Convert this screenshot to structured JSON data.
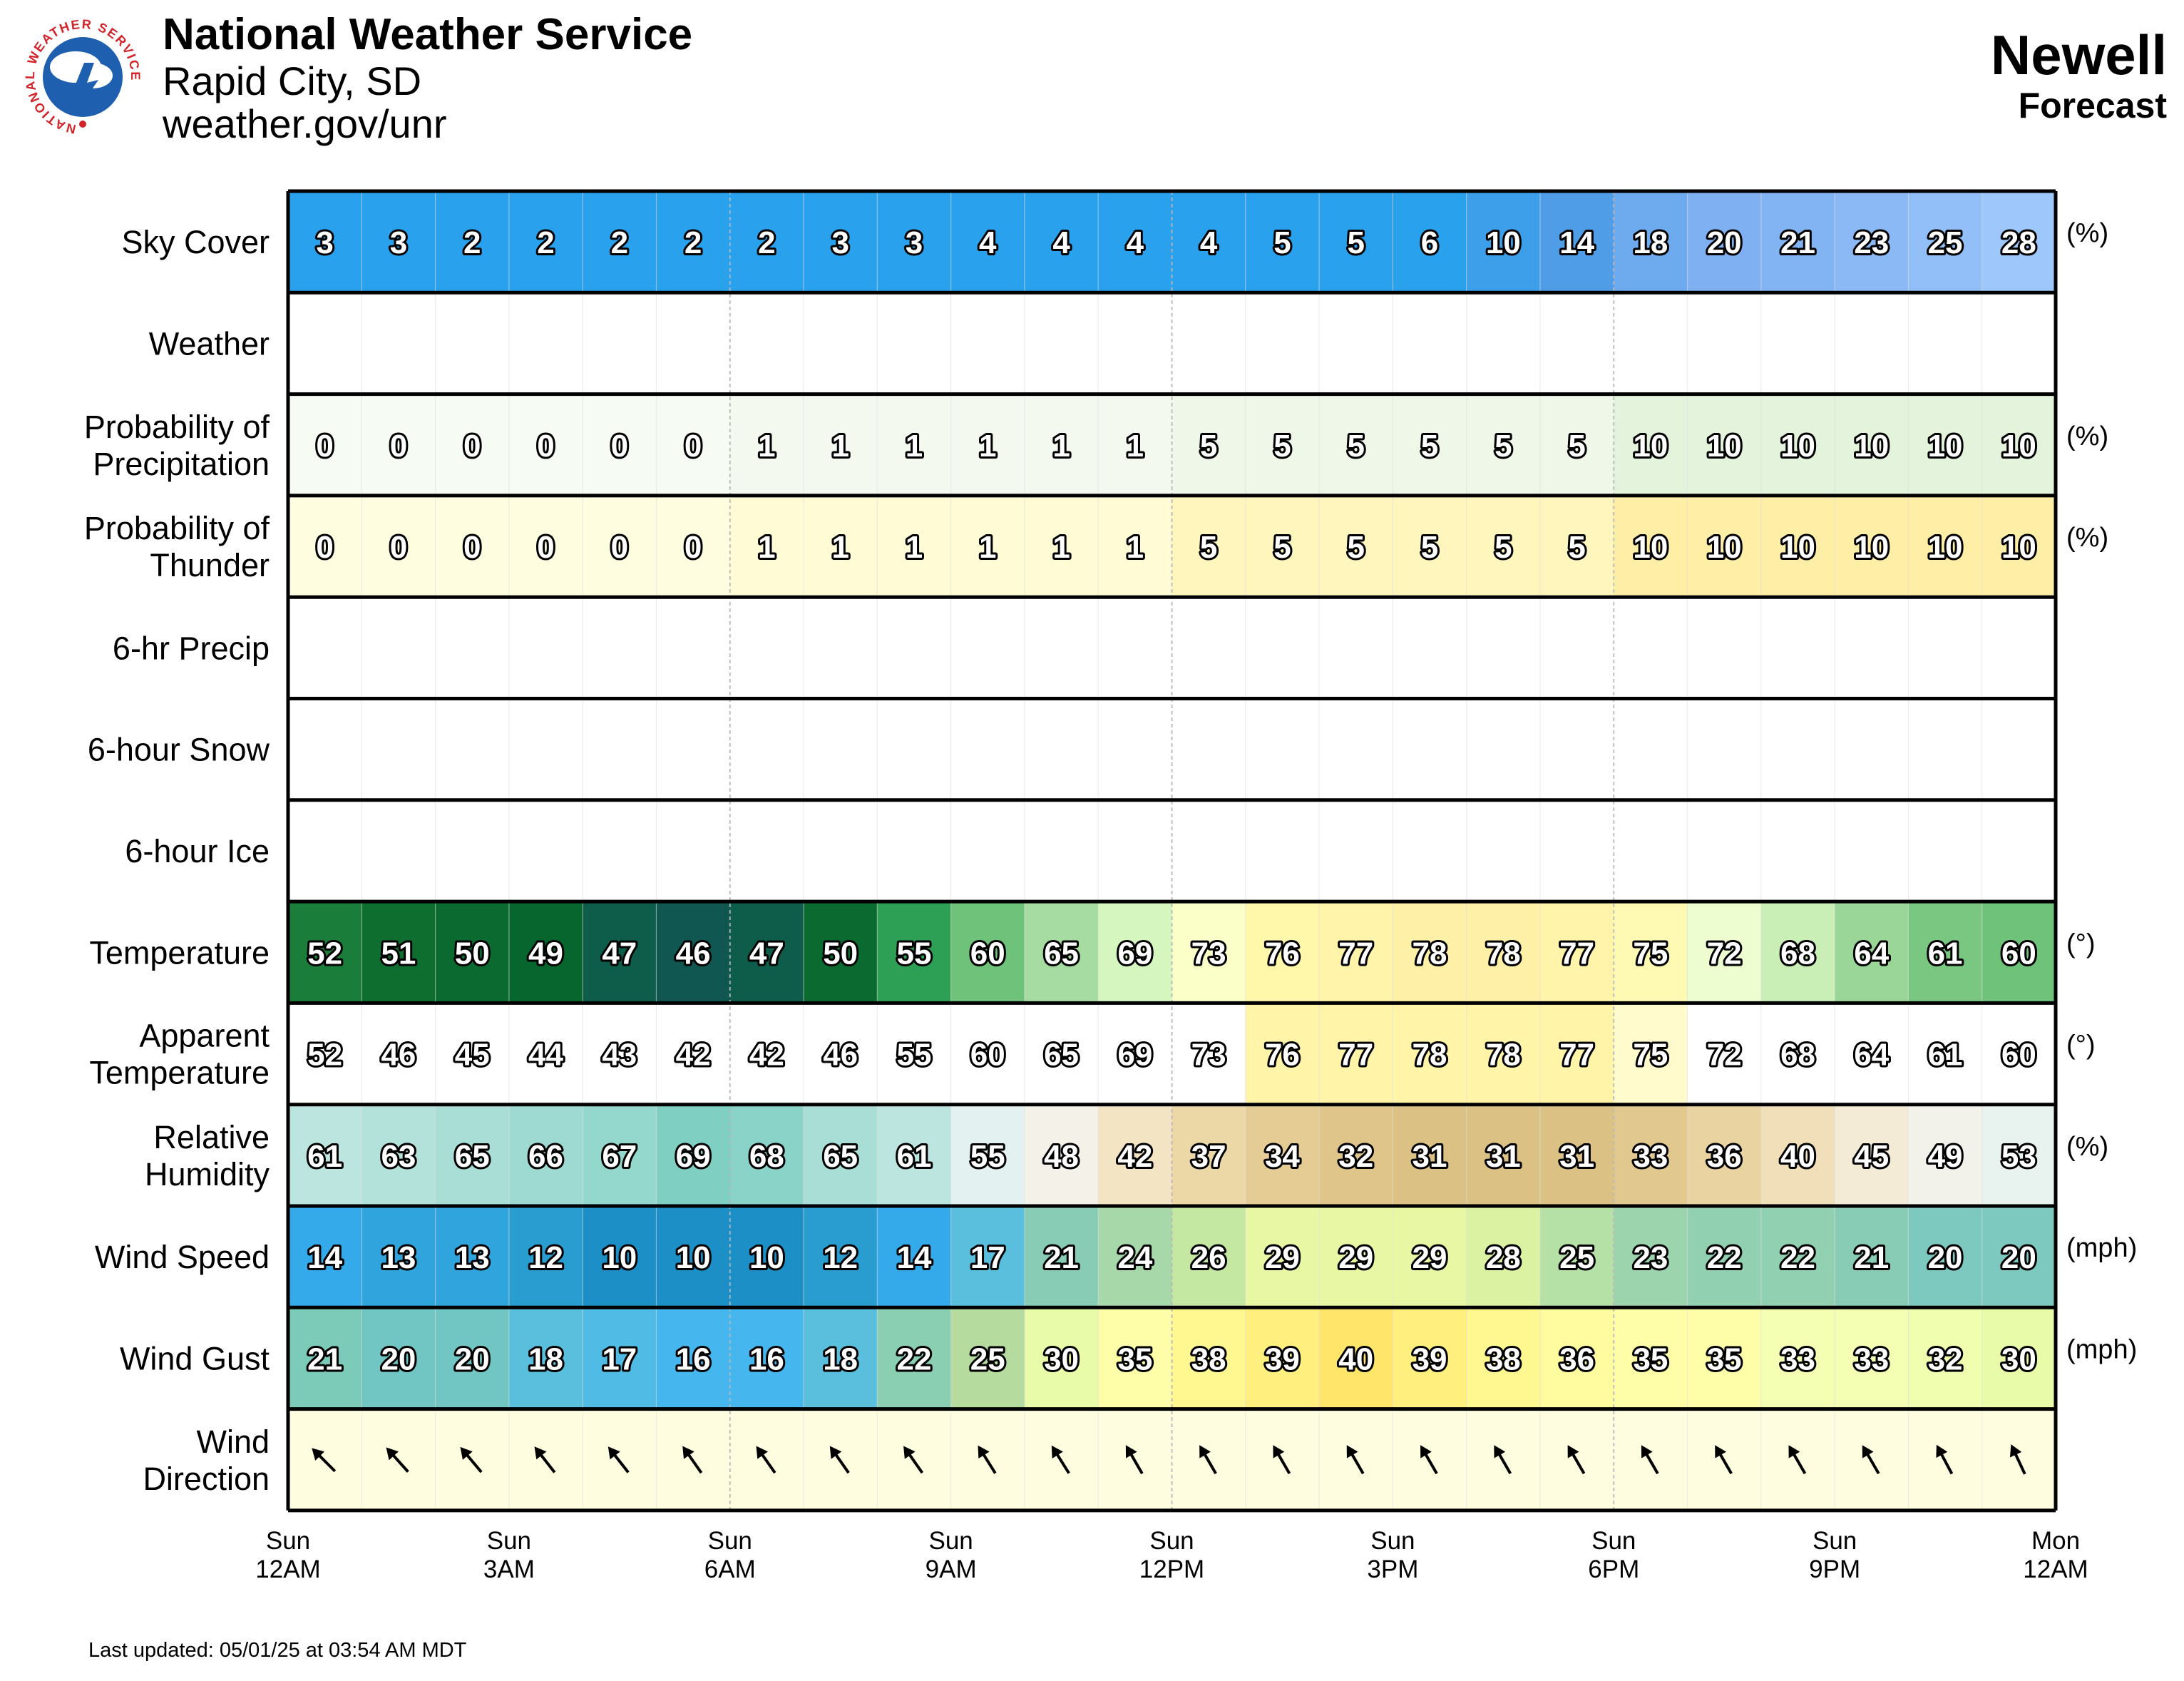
{
  "header": {
    "org": "National Weather Service",
    "office": "Rapid City, SD",
    "url": "weather.gov/unr",
    "location": "Newell",
    "product": "Forecast",
    "logo_text": "NATIONAL WEATHER SERVICE"
  },
  "footer": {
    "updated": "Last updated: 05/01/25 at 03:54 AM MDT"
  },
  "chart_data": {
    "type": "table",
    "hours": 24,
    "x_ticks": [
      {
        "day": "Sun",
        "time": "12AM"
      },
      {
        "day": "Sun",
        "time": "3AM"
      },
      {
        "day": "Sun",
        "time": "6AM"
      },
      {
        "day": "Sun",
        "time": "9AM"
      },
      {
        "day": "Sun",
        "time": "12PM"
      },
      {
        "day": "Sun",
        "time": "3PM"
      },
      {
        "day": "Sun",
        "time": "6PM"
      },
      {
        "day": "Sun",
        "time": "9PM"
      },
      {
        "day": "Mon",
        "time": "12AM"
      }
    ],
    "rows": [
      {
        "key": "sky",
        "label": [
          "Sky Cover"
        ],
        "unit": "(%)",
        "values": [
          3,
          3,
          2,
          2,
          2,
          2,
          2,
          3,
          3,
          4,
          4,
          4,
          4,
          5,
          5,
          6,
          10,
          14,
          18,
          20,
          21,
          23,
          25,
          28
        ]
      },
      {
        "key": "weather",
        "label": [
          "Weather"
        ],
        "unit": "",
        "values": []
      },
      {
        "key": "pop",
        "label": [
          "Probability of",
          "Precipitation"
        ],
        "unit": "(%)",
        "values": [
          0,
          0,
          0,
          0,
          0,
          0,
          1,
          1,
          1,
          1,
          1,
          1,
          5,
          5,
          5,
          5,
          5,
          5,
          10,
          10,
          10,
          10,
          10,
          10
        ]
      },
      {
        "key": "thunder",
        "label": [
          "Probability of",
          "Thunder"
        ],
        "unit": "(%)",
        "values": [
          0,
          0,
          0,
          0,
          0,
          0,
          1,
          1,
          1,
          1,
          1,
          1,
          5,
          5,
          5,
          5,
          5,
          5,
          10,
          10,
          10,
          10,
          10,
          10
        ]
      },
      {
        "key": "precip6",
        "label": [
          "6-hr Precip"
        ],
        "unit": "",
        "values": []
      },
      {
        "key": "snow6",
        "label": [
          "6-hour Snow"
        ],
        "unit": "",
        "values": []
      },
      {
        "key": "ice6",
        "label": [
          "6-hour Ice"
        ],
        "unit": "",
        "values": []
      },
      {
        "key": "temp",
        "label": [
          "Temperature"
        ],
        "unit": "(°)",
        "values": [
          52,
          51,
          50,
          49,
          47,
          46,
          47,
          50,
          55,
          60,
          65,
          69,
          73,
          76,
          77,
          78,
          78,
          77,
          75,
          72,
          68,
          64,
          61,
          60
        ]
      },
      {
        "key": "apparent",
        "label": [
          "Apparent",
          "Temperature"
        ],
        "unit": "(°)",
        "values": [
          52,
          46,
          45,
          44,
          43,
          42,
          42,
          46,
          55,
          60,
          65,
          69,
          73,
          76,
          77,
          78,
          78,
          77,
          75,
          72,
          68,
          64,
          61,
          60
        ]
      },
      {
        "key": "rh",
        "label": [
          "Relative",
          "Humidity"
        ],
        "unit": "(%)",
        "values": [
          61,
          63,
          65,
          66,
          67,
          69,
          68,
          65,
          61,
          55,
          48,
          42,
          37,
          34,
          32,
          31,
          31,
          31,
          33,
          36,
          40,
          45,
          49,
          53
        ]
      },
      {
        "key": "wspd",
        "label": [
          "Wind Speed"
        ],
        "unit": "(mph)",
        "values": [
          14,
          13,
          13,
          12,
          10,
          10,
          10,
          12,
          14,
          17,
          21,
          24,
          26,
          29,
          29,
          29,
          28,
          25,
          23,
          22,
          22,
          21,
          20,
          20
        ]
      },
      {
        "key": "wgust",
        "label": [
          "Wind Gust"
        ],
        "unit": "(mph)",
        "values": [
          21,
          20,
          20,
          18,
          17,
          16,
          16,
          18,
          22,
          25,
          30,
          35,
          38,
          39,
          40,
          39,
          38,
          36,
          35,
          35,
          33,
          33,
          32,
          30
        ]
      },
      {
        "key": "wdir",
        "label": [
          "Wind",
          "Direction"
        ],
        "unit": "",
        "values": [
          315,
          318,
          320,
          322,
          322,
          325,
          325,
          325,
          325,
          328,
          328,
          330,
          330,
          330,
          330,
          330,
          330,
          330,
          330,
          330,
          330,
          330,
          332,
          335
        ]
      }
    ]
  }
}
